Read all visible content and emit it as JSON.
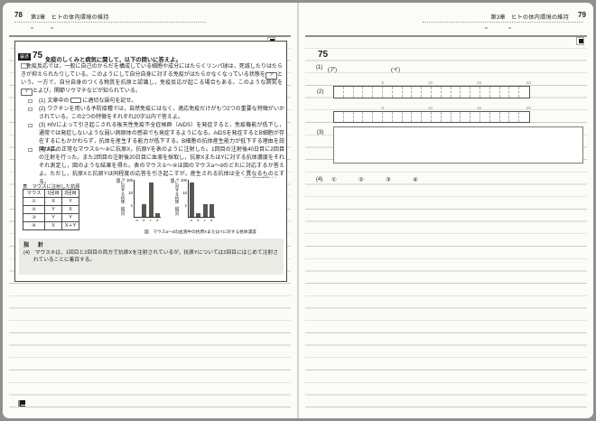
{
  "pages": {
    "left": {
      "page_number": "78",
      "chapter": "第3章　ヒトの体内環境の維持"
    },
    "right": {
      "page_number": "79",
      "chapter": "第3章　ヒトの体内環境の維持"
    }
  },
  "problem": {
    "badge": "論述",
    "number": "75",
    "title": "免疫のしくみと病気に関して，以下の問いに答えよ。",
    "intro": {
      "part1": "免疫反応では，一般に自己のからだを構成している細胞や成分にはたらくリンパ球は，死滅したりはたらきが抑えられたりしている。このようにして自分自身に対する免疫がはたらかなくなっている状態を",
      "blank1": "ア",
      "part2": "という。一方で，自分自身のつくる物質を抗原と認識し，免疫反応が起こる場合もある。このような病気を",
      "blank2": "イ",
      "part3": "とよび，関節リウマチなどが知られている。"
    },
    "q1": {
      "label": "(1)",
      "pre": "文章中の",
      "post": "に適切な語句を記せ。"
    },
    "q2": {
      "label": "(2)",
      "text": "ワクチンを用いる予防接種では，自然免疫にはなく，適応免疫だけがもつ2つの重要な特徴がいかされている。この2つの特徴をそれぞれ20字以内で答えよ。"
    },
    "q3": {
      "label": "(3)",
      "text": "HIVによって引き起こされる後天性免疫不全症候群（AIDS）を発症すると，免疫機能が低下し，通常では発症しないような弱い病原体の感染でも発症するようになる。AIDSを発症するとB細胞が存在するにもかかわらず，抗体を産生する能力が低下する。B細胞の抗体産生能力が低下する理由を説明せよ。"
    },
    "q4": {
      "label": "(4)",
      "text": "4匹の正常なマウス①〜④に抗原X，抗原Yを表のように注射した。1回目の注射後40日目に2回目の注射を行った。また2回目の注射後20日目に血液を採取し，抗原XまたはYに対する抗体濃度をそれぞれ測定し，図のような結果を得た。表のマウス①〜④は図のマウスa〜dのどれに対応するか答えよ。ただし，抗原Xと抗原Yは同程度の応答を引き起こすが，産生される抗体は全く異なるものとする。"
    },
    "source": "〔15 関西学院大〕"
  },
  "table": {
    "title": "表　マウスに注射した抗原",
    "headers": [
      "マウス",
      "1回目",
      "2回目"
    ],
    "rows": [
      [
        "①",
        "X",
        "Y"
      ],
      [
        "②",
        "Y",
        "X"
      ],
      [
        "③",
        "Y",
        "Y"
      ],
      [
        "④",
        "X",
        "X＋Y"
      ]
    ]
  },
  "chart_data": [
    {
      "type": "bar",
      "categories": [
        "a",
        "b",
        "c",
        "d"
      ],
      "values": [
        0,
        1,
        50,
        0.2
      ],
      "ylabel": "Xに対する抗体（相対値）",
      "yticks": [
        100,
        10,
        1
      ],
      "yscale": "log",
      "ylim": [
        0.1,
        100
      ],
      "bar_color": "#575752",
      "grid": false,
      "legend": "none"
    },
    {
      "type": "bar",
      "categories": [
        "a",
        "b",
        "c",
        "d"
      ],
      "values": [
        50,
        0.2,
        1,
        1
      ],
      "ylabel": "Yに対する抗体（相対値）",
      "yticks": [
        100,
        10,
        1
      ],
      "yscale": "log",
      "ylim": [
        0.1,
        100
      ],
      "bar_color": "#575752",
      "grid": false,
      "legend": "none"
    }
  ],
  "figure": {
    "caption": "図　マウスa〜dの血液中の抗原XまたはYに対する抗体濃度"
  },
  "guideline": {
    "header": "指　針",
    "text": "(4)　マウス④は，1回目と2回目の両方で抗原Xを注射されているが，抗原Yについては2回目にはじめて注射されていることに着目する。"
  },
  "answers": {
    "number": "75",
    "q1_label": "(1)",
    "q1_sub_a": "(ア)",
    "q1_sub_b": "(イ)",
    "q2_label": "(2)",
    "grid_cells": 20,
    "grid_ticks": [
      "5",
      "10",
      "15",
      "20"
    ],
    "q3_label": "(3)",
    "q4_label": "(4)",
    "q4_options": [
      "①",
      "②",
      "③",
      "④"
    ]
  }
}
